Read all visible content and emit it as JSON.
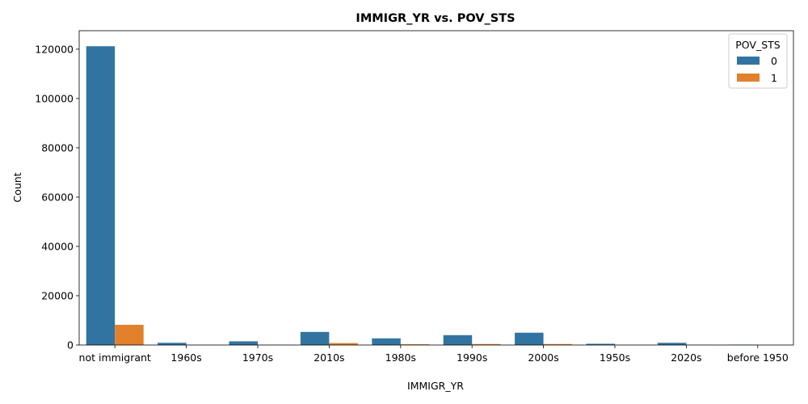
{
  "chart_data": {
    "type": "bar",
    "title": "IMMIGR_YR vs. POV_STS",
    "xlabel": "IMMIGR_YR",
    "ylabel": "Count",
    "categories": [
      "not immigrant",
      "1960s",
      "1970s",
      "2010s",
      "1980s",
      "1990s",
      "2000s",
      "1950s",
      "2020s",
      "before 1950"
    ],
    "series": [
      {
        "name": "0",
        "color": "#3274a1",
        "values": [
          121200,
          900,
          1500,
          5300,
          2700,
          4000,
          5000,
          500,
          900,
          150
        ]
      },
      {
        "name": "1",
        "color": "#e1812c",
        "values": [
          8200,
          60,
          100,
          800,
          300,
          400,
          400,
          30,
          80,
          10
        ]
      }
    ],
    "ylim": [
      0,
      127500
    ],
    "yticks": [
      0,
      20000,
      40000,
      60000,
      80000,
      100000,
      120000
    ],
    "legend": {
      "title": "POV_STS",
      "position": "top-right"
    },
    "grid": false
  }
}
